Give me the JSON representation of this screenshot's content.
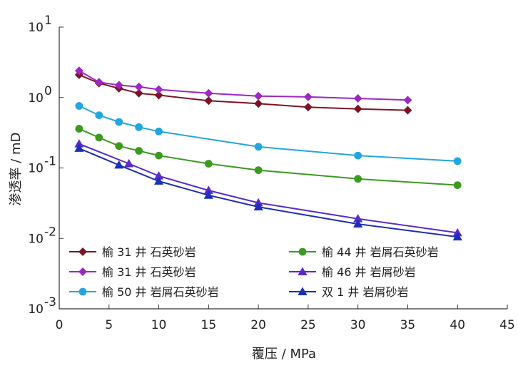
{
  "chart_data": {
    "type": "line",
    "xlabel": "覆压 / MPa",
    "ylabel": "渗透率 / mD",
    "xlim": [
      0,
      45
    ],
    "ylim": [
      0.001,
      10
    ],
    "y_scale": "log",
    "grid": false,
    "legend_position": "bottom-inside",
    "x_ticks": [
      "0",
      "5",
      "10",
      "15",
      "20",
      "25",
      "30",
      "35",
      "40",
      "45"
    ],
    "y_ticks": [
      {
        "base": "10",
        "exp": "1"
      },
      {
        "base": "10",
        "exp": "0"
      },
      {
        "base": "10",
        "exp": "-1"
      },
      {
        "base": "10",
        "exp": "-2"
      },
      {
        "base": "10",
        "exp": "-3"
      }
    ],
    "series": [
      {
        "name": "榆 31 井  石英砂岩",
        "marker": "diamond",
        "color": "#7b1526",
        "x": [
          2,
          4,
          6,
          8,
          10,
          15,
          20,
          25,
          30,
          35
        ],
        "y": [
          2.1,
          1.6,
          1.35,
          1.15,
          1.08,
          0.9,
          0.82,
          0.73,
          0.69,
          0.66
        ]
      },
      {
        "name": "榆 31 井  石英砂岩",
        "marker": "diamond",
        "color": "#9d27c4",
        "x": [
          2,
          4,
          6,
          8,
          10,
          15,
          20,
          25,
          30,
          35
        ],
        "y": [
          2.4,
          1.65,
          1.5,
          1.42,
          1.3,
          1.15,
          1.05,
          1.02,
          0.97,
          0.92
        ]
      },
      {
        "name": "榆 50 井  岩屑石英砂岩",
        "marker": "circle",
        "color": "#22a6e0",
        "x": [
          2,
          4,
          6,
          8,
          10,
          20,
          30,
          40
        ],
        "y": [
          0.76,
          0.56,
          0.45,
          0.38,
          0.33,
          0.2,
          0.15,
          0.125
        ]
      },
      {
        "name": "榆 44 井  岩屑石英砂岩",
        "marker": "circle",
        "color": "#3b9a1f",
        "x": [
          2,
          4,
          6,
          8,
          10,
          15,
          20,
          30,
          40
        ],
        "y": [
          0.36,
          0.27,
          0.205,
          0.175,
          0.15,
          0.115,
          0.093,
          0.07,
          0.057
        ]
      },
      {
        "name": "榆 46 井  岩屑砂岩",
        "marker": "triangle",
        "color": "#5a2bc8",
        "x": [
          2,
          7,
          10,
          15,
          20,
          30,
          40
        ],
        "y": [
          0.22,
          0.115,
          0.077,
          0.048,
          0.032,
          0.019,
          0.012
        ]
      },
      {
        "name": "双 1 井  岩屑砂岩",
        "marker": "triangle",
        "color": "#1b2fb8",
        "x": [
          2,
          6,
          10,
          15,
          20,
          30,
          40
        ],
        "y": [
          0.19,
          0.11,
          0.065,
          0.041,
          0.028,
          0.016,
          0.0105
        ]
      }
    ],
    "legend_order": [
      0,
      3,
      1,
      4,
      2,
      5
    ]
  }
}
